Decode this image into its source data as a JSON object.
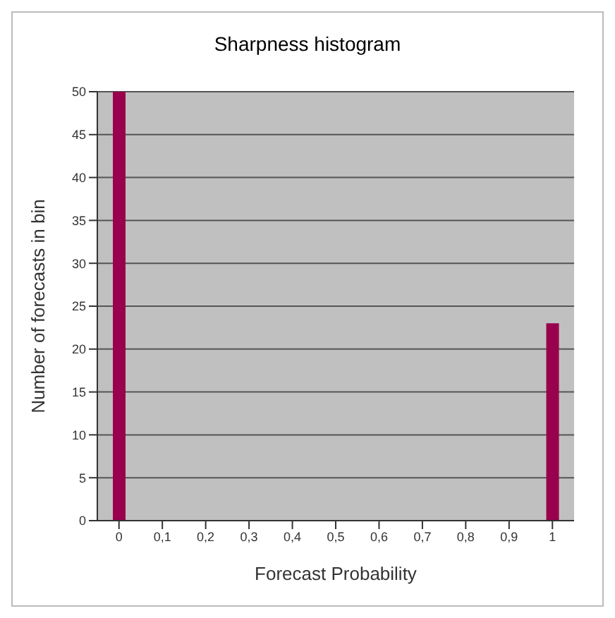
{
  "chart_data": {
    "type": "bar",
    "title": "Sharpness histogram",
    "xlabel": "Forecast Probability",
    "ylabel": "Number of forecasts in bin",
    "categories": [
      "0",
      "0,1",
      "0,2",
      "0,3",
      "0,4",
      "0,5",
      "0,6",
      "0,7",
      "0,8",
      "0,9",
      "1"
    ],
    "values": [
      50,
      0,
      0,
      0,
      0,
      0,
      0,
      0,
      0,
      0,
      23
    ],
    "color": "#99004d",
    "ylim": [
      0,
      50
    ],
    "yticks": [
      0,
      5,
      10,
      15,
      20,
      25,
      30,
      35,
      40,
      45,
      50
    ],
    "grid": "y"
  }
}
